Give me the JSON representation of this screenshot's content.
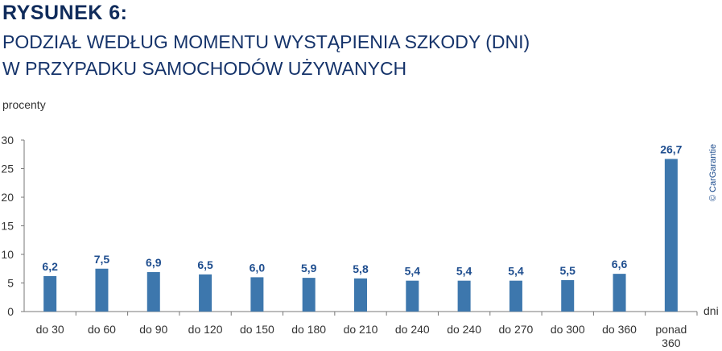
{
  "title_line1": "RYSUNEK 6:",
  "title_line2": "PODZIAŁ WEDŁUG MOMENTU WYSTĄPIENIA SZKODY (DNI)",
  "title_line3": "W PRZYPADKU SAMOCHODÓW UŻYWANYCH",
  "copyright": "© CarGarantie",
  "colors": {
    "bar": "#3d77ad",
    "label": "#1f4e8f",
    "title": "#0f2b5b"
  },
  "chart_data": {
    "type": "bar",
    "title": "PODZIAŁ WEDŁUG MOMENTU WYSTĄPIENIA SZKODY (DNI) W PRZYPADKU SAMOCHODÓW UŻYWANYCH",
    "ylabel": "procenty",
    "xlabel": "dni",
    "ylim": [
      0,
      30
    ],
    "yticks": [
      0,
      5,
      10,
      15,
      20,
      25,
      30
    ],
    "categories": [
      [
        "do 30"
      ],
      [
        "do 60"
      ],
      [
        "do 90"
      ],
      [
        "do 120"
      ],
      [
        "do 150"
      ],
      [
        "do 180"
      ],
      [
        "do 210"
      ],
      [
        "do 240"
      ],
      [
        "do 240"
      ],
      [
        "do 270"
      ],
      [
        "do 300"
      ],
      [
        "do 360"
      ],
      [
        "ponad",
        "360"
      ]
    ],
    "values": [
      6.2,
      7.5,
      6.9,
      6.5,
      6.0,
      5.9,
      5.8,
      5.4,
      5.4,
      5.4,
      5.5,
      6.6,
      26.7
    ],
    "data_labels": [
      "6,2",
      "7,5",
      "6,9",
      "6,5",
      "6,0",
      "5,9",
      "5,8",
      "5,4",
      "5,4",
      "5,4",
      "5,5",
      "6,6",
      "26,7"
    ],
    "grid": false,
    "legend": "none"
  }
}
